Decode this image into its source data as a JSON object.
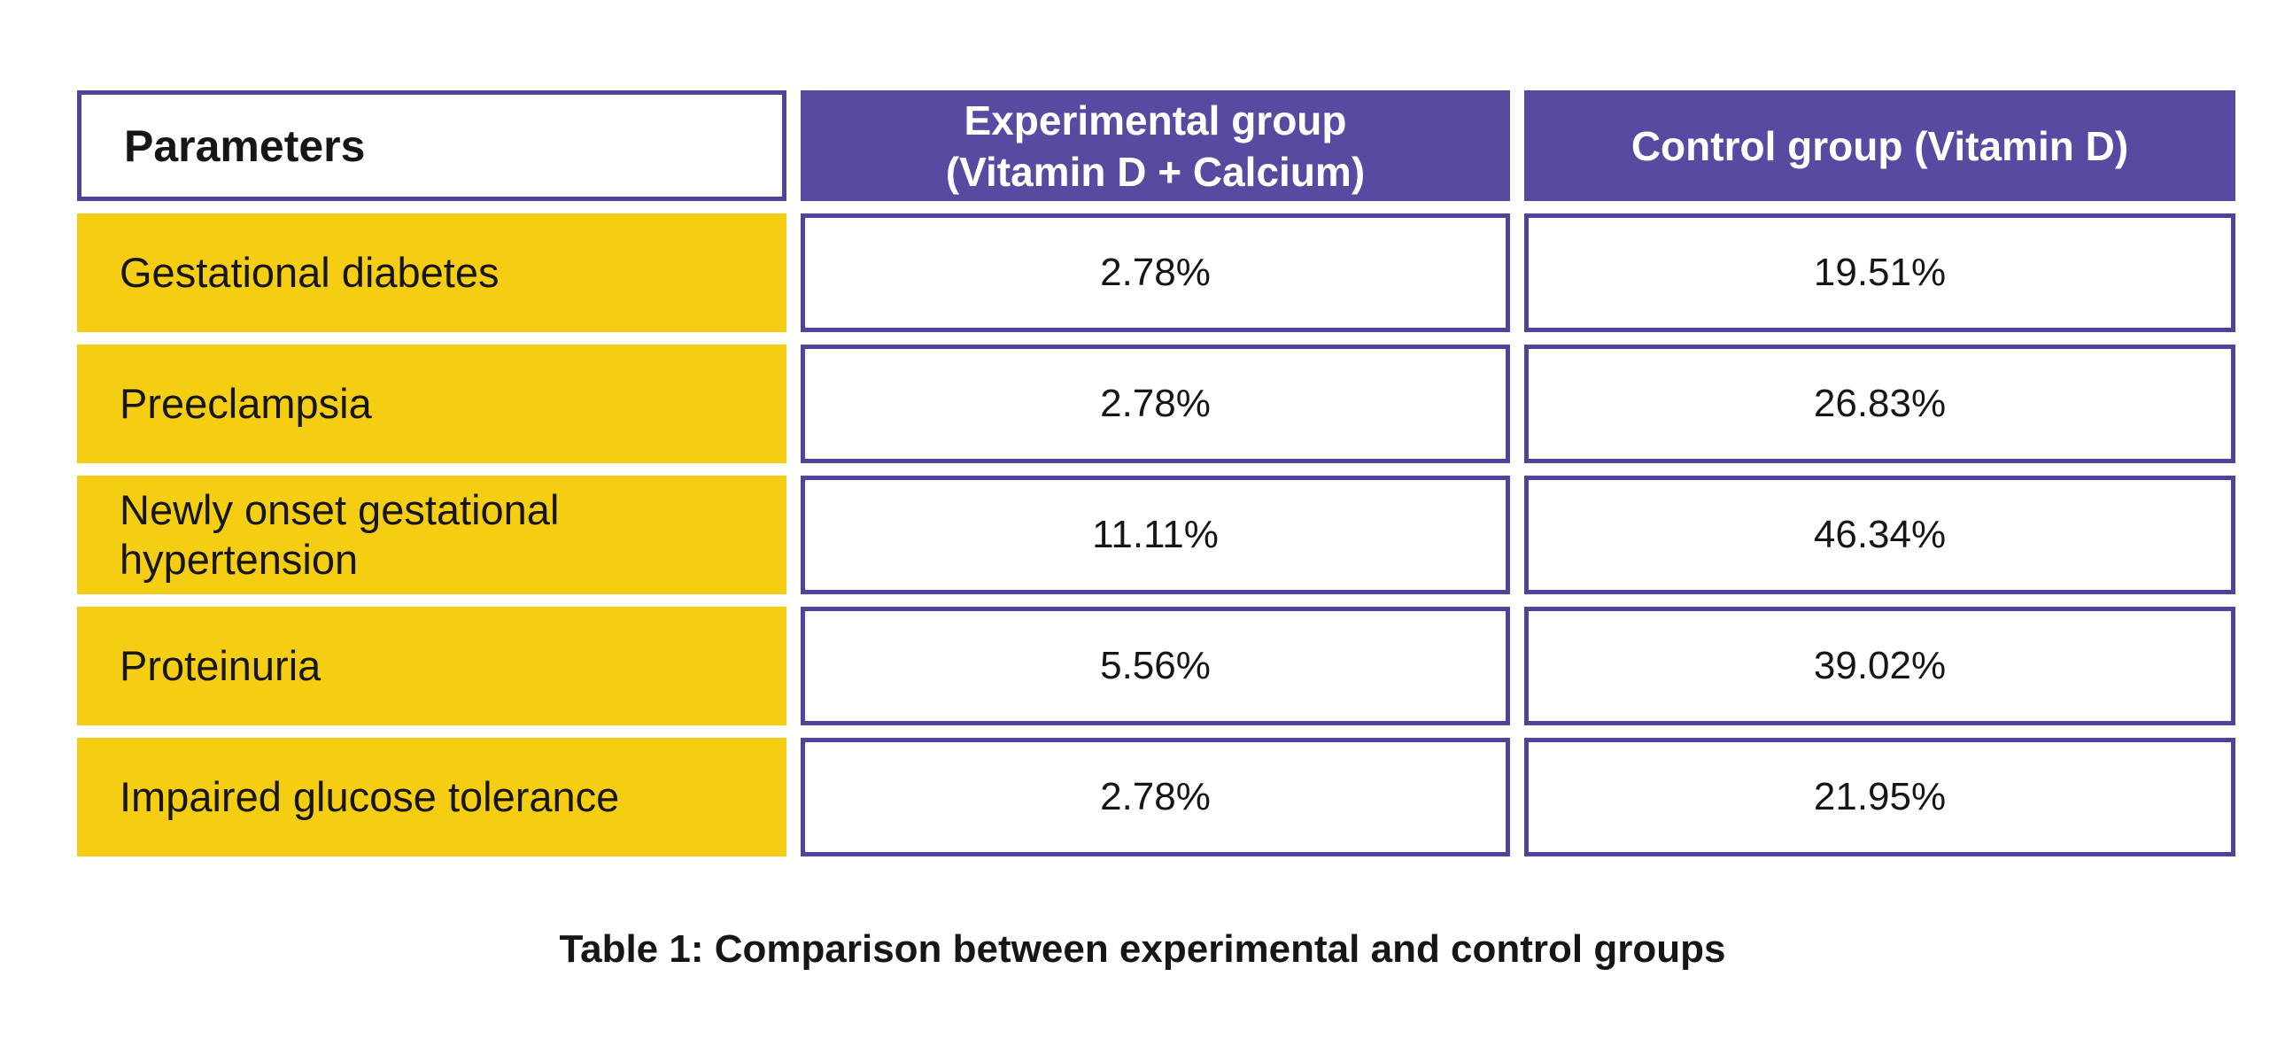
{
  "colors": {
    "purple_header_fill": "#574aa0",
    "purple_border": "#50449a",
    "row_yellow": "#f5cd12",
    "text_dark": "#161616",
    "text_light": "#ffffff",
    "background": "#ffffff"
  },
  "table": {
    "header": {
      "parameters": "Parameters",
      "experimental_line1": "Experimental group",
      "experimental_line2": "(Vitamin D + Calcium)",
      "control": "Control group (Vitamin D)"
    },
    "rows": [
      {
        "parameter": "Gestational diabetes",
        "experimental": "2.78%",
        "control": "19.51%"
      },
      {
        "parameter": "Preeclampsia",
        "experimental": "2.78%",
        "control": "26.83%"
      },
      {
        "parameter": "Newly onset gestational hypertension",
        "experimental": "11.11%",
        "control": "46.34%"
      },
      {
        "parameter": "Proteinuria",
        "experimental": "5.56%",
        "control": "39.02%"
      },
      {
        "parameter": "Impaired glucose tolerance",
        "experimental": "2.78%",
        "control": "21.95%"
      }
    ]
  },
  "caption": "Table 1: Comparison between experimental and control groups",
  "chart_data": {
    "type": "table",
    "title": "Table 1: Comparison between experimental and control groups",
    "columns": [
      "Parameters",
      "Experimental group (Vitamin D + Calcium)",
      "Control group (Vitamin D)"
    ],
    "categories": [
      "Gestational diabetes",
      "Preeclampsia",
      "Newly onset gestational hypertension",
      "Proteinuria",
      "Impaired glucose tolerance"
    ],
    "series": [
      {
        "name": "Experimental group (Vitamin D + Calcium)",
        "values": [
          2.78,
          2.78,
          11.11,
          5.56,
          2.78
        ]
      },
      {
        "name": "Control group (Vitamin D)",
        "values": [
          19.51,
          26.83,
          46.34,
          39.02,
          21.95
        ]
      }
    ],
    "rows": [
      [
        "Gestational diabetes",
        "2.78%",
        "19.51%"
      ],
      [
        "Preeclampsia",
        "2.78%",
        "26.83%"
      ],
      [
        "Newly onset gestational hypertension",
        "11.11%",
        "46.34%"
      ],
      [
        "Proteinuria",
        "5.56%",
        "39.02%"
      ],
      [
        "Impaired glucose tolerance",
        "2.78%",
        "21.95%"
      ]
    ],
    "unit": "percent"
  }
}
